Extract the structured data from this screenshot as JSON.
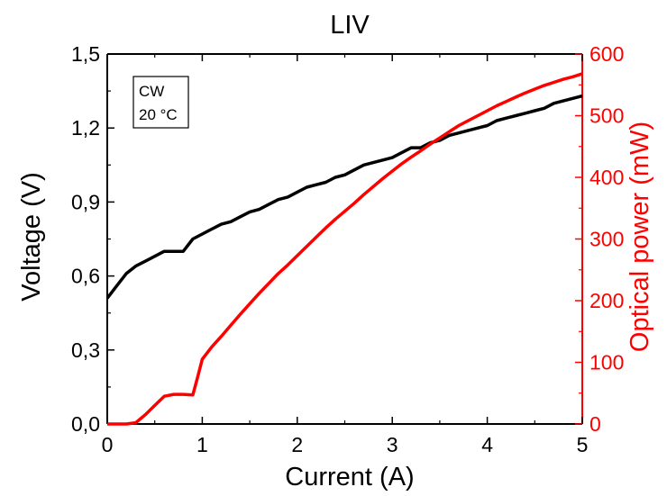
{
  "chart_data": {
    "type": "line",
    "title": "LIV",
    "xlabel": "Current (A)",
    "ylabel_left": "Voltage (V)",
    "ylabel_right": "Optical power (mW)",
    "xlim": [
      0,
      5
    ],
    "ylim_left": [
      0,
      1.5
    ],
    "ylim_right": [
      0,
      600
    ],
    "x_ticks": [
      "0",
      "1",
      "2",
      "3",
      "4",
      "5"
    ],
    "y_left_ticks": [
      "0,0",
      "0,3",
      "0,6",
      "0,9",
      "1,2",
      "1,5"
    ],
    "y_right_ticks": [
      "0",
      "100",
      "200",
      "300",
      "400",
      "500",
      "600"
    ],
    "grid": false,
    "legend_box": [
      "CW",
      "20 °C"
    ],
    "colors": {
      "voltage": "#000000",
      "power": "#ff0000"
    },
    "series": [
      {
        "axis": "left",
        "x": [
          0,
          0.1,
          0.2,
          0.3,
          0.4,
          0.5,
          0.6,
          0.7,
          0.8,
          0.9,
          1.0,
          1.1,
          1.2,
          1.3,
          1.4,
          1.5,
          1.6,
          1.7,
          1.8,
          1.9,
          2.0,
          2.1,
          2.2,
          2.3,
          2.4,
          2.5,
          2.6,
          2.7,
          2.8,
          2.9,
          3.0,
          3.1,
          3.2,
          3.3,
          3.4,
          3.5,
          3.6,
          3.7,
          3.8,
          3.9,
          4.0,
          4.1,
          4.2,
          4.3,
          4.4,
          4.5,
          4.6,
          4.7,
          4.8,
          4.9,
          5.0
        ],
        "values": [
          0.51,
          0.56,
          0.61,
          0.64,
          0.66,
          0.68,
          0.7,
          0.7,
          0.7,
          0.75,
          0.77,
          0.79,
          0.81,
          0.82,
          0.84,
          0.86,
          0.87,
          0.89,
          0.91,
          0.92,
          0.94,
          0.96,
          0.97,
          0.98,
          1.0,
          1.01,
          1.03,
          1.05,
          1.06,
          1.07,
          1.08,
          1.1,
          1.12,
          1.12,
          1.14,
          1.15,
          1.17,
          1.18,
          1.19,
          1.2,
          1.21,
          1.23,
          1.24,
          1.25,
          1.26,
          1.27,
          1.28,
          1.3,
          1.31,
          1.32,
          1.33
        ]
      },
      {
        "axis": "right",
        "x": [
          0,
          0.1,
          0.2,
          0.3,
          0.4,
          0.5,
          0.6,
          0.7,
          0.8,
          0.9,
          0.95,
          1.0,
          1.1,
          1.2,
          1.3,
          1.4,
          1.5,
          1.6,
          1.7,
          1.8,
          1.9,
          2.0,
          2.1,
          2.2,
          2.3,
          2.4,
          2.5,
          2.6,
          2.7,
          2.8,
          2.9,
          3.0,
          3.1,
          3.2,
          3.3,
          3.4,
          3.5,
          3.6,
          3.7,
          3.8,
          3.9,
          4.0,
          4.1,
          4.2,
          4.3,
          4.4,
          4.5,
          4.6,
          4.7,
          4.8,
          4.9,
          5.0
        ],
        "values": [
          0,
          0,
          0,
          2,
          15,
          30,
          45,
          48,
          48,
          47,
          75,
          105,
          125,
          142,
          160,
          178,
          195,
          212,
          228,
          244,
          258,
          273,
          288,
          303,
          318,
          332,
          345,
          358,
          372,
          385,
          398,
          410,
          422,
          433,
          443,
          454,
          464,
          474,
          484,
          492,
          500,
          508,
          516,
          523,
          530,
          537,
          543,
          549,
          554,
          559,
          563,
          568
        ]
      }
    ]
  }
}
